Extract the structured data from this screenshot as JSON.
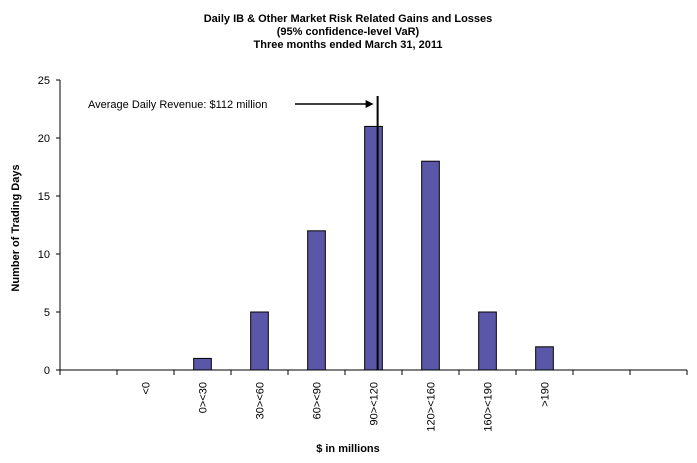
{
  "chart_data": {
    "type": "bar",
    "title": [
      "Daily IB & Other Market Risk Related Gains and Losses",
      "(95% confidence-level  VaR)",
      "Three months ended March 31, 2011"
    ],
    "xlabel": "$ in millions",
    "ylabel": "Number of Trading Days",
    "categories": [
      "<0",
      "0><30",
      "30><60",
      "60><90",
      "90><120",
      "120><160",
      "160><190",
      ">190"
    ],
    "values": [
      0,
      1,
      5,
      12,
      21,
      18,
      5,
      2
    ],
    "ylim": [
      0,
      25
    ],
    "yticks": [
      0,
      5,
      10,
      15,
      20,
      25
    ],
    "grid": false,
    "bar_color": "#5b57a8",
    "annotation": {
      "text": "Average Daily Revenue:  $112 million",
      "value": 112
    }
  }
}
